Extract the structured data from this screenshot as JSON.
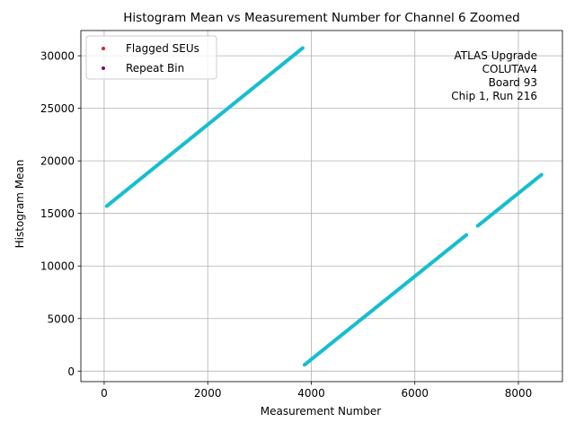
{
  "chart_data": {
    "type": "scatter",
    "title": "Histogram Mean vs Measurement Number for Channel 6 Zoomed",
    "xlabel": "Measurement Number",
    "ylabel": "Histogram Mean",
    "xlim": [
      -450,
      8850
    ],
    "ylim": [
      -1000,
      32400
    ],
    "xticks": [
      0,
      2000,
      4000,
      6000,
      8000
    ],
    "yticks": [
      0,
      5000,
      10000,
      15000,
      20000,
      25000,
      30000
    ],
    "xtick_labels": [
      "0",
      "2000",
      "4000",
      "6000",
      "8000"
    ],
    "ytick_labels": [
      "0",
      "5000",
      "10000",
      "15000",
      "20000",
      "25000",
      "30000"
    ],
    "grid": true,
    "legend_position": "top-left",
    "legend": [
      {
        "name": "Flagged SEUs",
        "color": "#d62728"
      },
      {
        "name": "Repeat Bin",
        "color": "#800080"
      }
    ],
    "annotation": [
      "ATLAS Upgrade",
      "COLUTAv4",
      "Board 93",
      "Chip 1, Run 216"
    ],
    "series": [
      {
        "color": "#17becf",
        "segments": [
          {
            "x0": 50,
            "y0": 15700,
            "x1": 3850,
            "y1": 30800
          },
          {
            "x0": 3870,
            "y0": 600,
            "x1": 8450,
            "y1": 18700
          }
        ],
        "gaps": [
          [
            7000,
            7200
          ]
        ]
      }
    ]
  }
}
